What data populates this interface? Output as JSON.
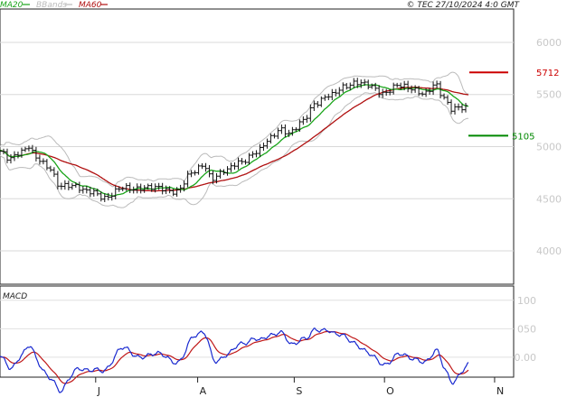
{
  "header": {
    "legend": [
      {
        "label": "MA20",
        "color": "#1aa51a"
      },
      {
        "label": "BBands",
        "color": "#bbbbbb"
      },
      {
        "label": "MA60",
        "color": "#b01010"
      }
    ],
    "copyright": "© TEC 27/10/2024 4:0 GMT"
  },
  "chart_data": [
    {
      "type": "ohlc",
      "title": "",
      "y_axis_ticks": [
        "4000",
        "4500",
        "5000",
        "5500",
        "6000"
      ],
      "y_tick_values": [
        4000,
        4500,
        5000,
        5500,
        6000
      ],
      "ylim": [
        3680,
        6320
      ],
      "x_axis_ticks": [
        "J",
        "J",
        "A",
        "S",
        "O",
        "N"
      ],
      "x_tick_index": [
        -6,
        106,
        219,
        326,
        426,
        548
      ],
      "n_bars": 520,
      "grid": true,
      "colors": {
        "bars": "#111111",
        "ma20": "#1aa51a",
        "bbands": "#bbbbbb",
        "ma60": "#b01010",
        "resistance": "#cc0000",
        "support": "#008800"
      },
      "levels": [
        {
          "name": "resistance",
          "value": 5712,
          "label": "5712"
        },
        {
          "name": "support",
          "value": 5105,
          "label": "5105"
        }
      ],
      "close_anchors": [
        [
          0,
          4950
        ],
        [
          10,
          4870
        ],
        [
          25,
          4960
        ],
        [
          32,
          5020
        ],
        [
          40,
          4900
        ],
        [
          55,
          4780
        ],
        [
          65,
          4620
        ],
        [
          80,
          4640
        ],
        [
          100,
          4560
        ],
        [
          115,
          4500
        ],
        [
          135,
          4620
        ],
        [
          150,
          4580
        ],
        [
          175,
          4620
        ],
        [
          195,
          4560
        ],
        [
          215,
          4760
        ],
        [
          225,
          4840
        ],
        [
          235,
          4700
        ],
        [
          250,
          4760
        ],
        [
          265,
          4850
        ],
        [
          285,
          4960
        ],
        [
          300,
          5070
        ],
        [
          310,
          5160
        ],
        [
          320,
          5140
        ],
        [
          335,
          5250
        ],
        [
          350,
          5400
        ],
        [
          365,
          5500
        ],
        [
          380,
          5580
        ],
        [
          395,
          5600
        ],
        [
          408,
          5590
        ],
        [
          425,
          5520
        ],
        [
          440,
          5580
        ],
        [
          455,
          5550
        ],
        [
          470,
          5520
        ],
        [
          482,
          5600
        ],
        [
          492,
          5450
        ],
        [
          500,
          5350
        ],
        [
          510,
          5380
        ],
        [
          519,
          5390
        ]
      ]
    },
    {
      "type": "line",
      "title": "MACD",
      "y_axis_ticks": [
        "0.00",
        "050",
        "100"
      ],
      "y_tick_values": [
        0,
        50,
        100
      ],
      "ylim": [
        -35,
        125
      ],
      "series_colors": {
        "macd": "#1a2ad0",
        "signal": "#c01818"
      }
    }
  ]
}
